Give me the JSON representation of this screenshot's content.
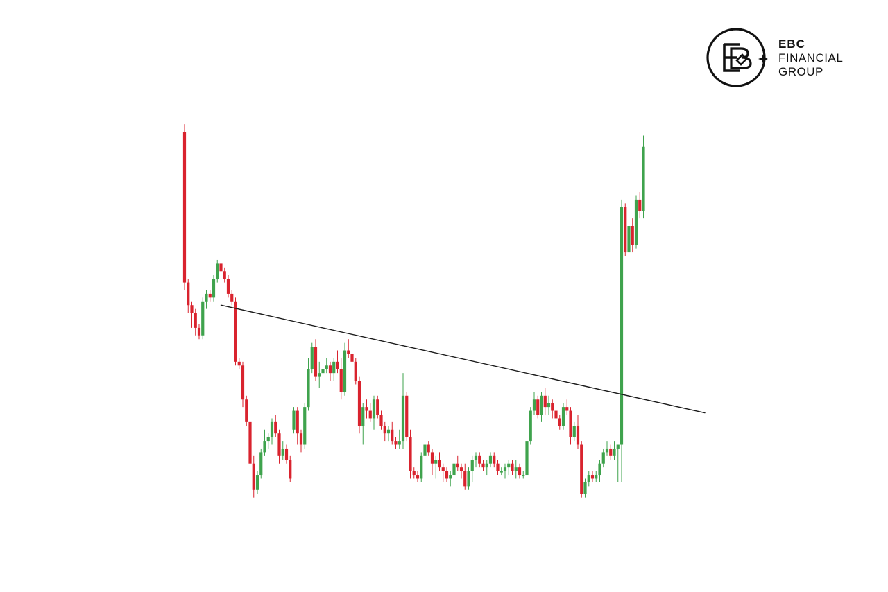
{
  "brand": {
    "line1": "EBC",
    "line2": "FINANCIAL",
    "line3": "GROUP"
  },
  "colors": {
    "up": "#3fa34d",
    "down": "#d9232e",
    "trendline": "#1a1a1a",
    "background": "#ffffff"
  },
  "chart_data": {
    "type": "candlestick",
    "grid": false,
    "axes_visible": false,
    "ylim": [
      0,
      100
    ],
    "candles": [
      [
        100,
        102,
        58,
        60
      ],
      [
        60,
        61,
        52,
        54
      ],
      [
        54,
        55,
        48,
        52
      ],
      [
        52,
        53,
        46,
        48
      ],
      [
        48,
        49,
        45,
        46
      ],
      [
        46,
        56,
        45,
        55
      ],
      [
        55,
        58,
        53,
        57
      ],
      [
        57,
        58,
        55,
        56
      ],
      [
        56,
        62,
        55,
        61
      ],
      [
        61,
        66,
        60,
        65
      ],
      [
        65,
        66,
        62,
        63
      ],
      [
        63,
        64,
        60,
        61
      ],
      [
        61,
        62,
        56,
        57
      ],
      [
        57,
        58,
        54,
        55
      ],
      [
        55,
        56,
        38,
        39
      ],
      [
        39,
        40,
        37,
        38
      ],
      [
        38,
        39,
        27,
        29
      ],
      [
        29,
        30,
        22,
        23
      ],
      [
        23,
        24,
        10,
        12
      ],
      [
        12,
        14,
        3,
        5
      ],
      [
        5,
        10,
        4,
        9
      ],
      [
        9,
        16,
        8,
        15
      ],
      [
        15,
        21,
        14,
        18
      ],
      [
        18,
        20,
        16,
        19
      ],
      [
        19,
        24,
        17,
        23
      ],
      [
        23,
        25,
        19,
        20
      ],
      [
        20,
        21,
        12,
        14
      ],
      [
        14,
        18,
        13,
        16
      ],
      [
        16,
        17,
        12,
        13
      ],
      [
        13,
        14,
        7,
        8
      ],
      [
        21,
        27,
        20,
        26
      ],
      [
        26,
        27,
        17,
        20
      ],
      [
        20,
        21,
        15,
        17
      ],
      [
        17,
        28,
        16,
        27
      ],
      [
        27,
        40,
        26,
        37
      ],
      [
        37,
        44,
        36,
        43
      ],
      [
        43,
        45,
        34,
        35
      ],
      [
        35,
        39,
        32,
        36
      ],
      [
        36,
        38,
        35,
        37
      ],
      [
        37,
        40,
        36,
        38
      ],
      [
        38,
        39,
        34,
        36
      ],
      [
        36,
        40,
        34,
        39
      ],
      [
        39,
        42,
        36,
        37
      ],
      [
        37,
        40,
        29,
        31
      ],
      [
        31,
        44,
        30,
        42
      ],
      [
        42,
        45,
        40,
        41
      ],
      [
        41,
        43,
        38,
        39
      ],
      [
        39,
        40,
        33,
        34
      ],
      [
        34,
        35,
        20,
        22
      ],
      [
        22,
        28,
        17,
        27
      ],
      [
        27,
        29,
        24,
        26
      ],
      [
        26,
        28,
        23,
        24
      ],
      [
        24,
        30,
        21,
        29
      ],
      [
        29,
        30,
        24,
        25
      ],
      [
        25,
        26,
        21,
        22
      ],
      [
        22,
        23,
        18,
        20
      ],
      [
        20,
        22,
        18,
        21
      ],
      [
        21,
        23,
        17,
        18
      ],
      [
        18,
        19,
        16,
        17
      ],
      [
        17,
        21,
        16,
        18
      ],
      [
        18,
        36,
        16,
        30
      ],
      [
        30,
        31,
        18,
        19
      ],
      [
        19,
        21,
        8,
        10
      ],
      [
        10,
        11,
        8,
        9
      ],
      [
        9,
        10,
        7,
        8
      ],
      [
        8,
        15,
        7,
        14
      ],
      [
        14,
        20,
        13,
        17
      ],
      [
        17,
        18,
        14,
        15
      ],
      [
        15,
        16,
        9,
        12
      ],
      [
        12,
        14,
        8,
        13
      ],
      [
        13,
        15,
        10,
        11
      ],
      [
        11,
        12,
        7,
        10
      ],
      [
        10,
        11,
        7,
        8
      ],
      [
        8,
        10,
        6,
        9
      ],
      [
        9,
        13,
        8,
        12
      ],
      [
        12,
        14,
        10,
        11
      ],
      [
        11,
        12,
        8,
        10
      ],
      [
        10,
        12,
        5,
        6
      ],
      [
        6,
        11,
        5,
        10
      ],
      [
        10,
        14,
        7,
        13
      ],
      [
        13,
        15,
        11,
        14
      ],
      [
        14,
        15,
        11,
        12
      ],
      [
        12,
        13,
        10,
        11
      ],
      [
        11,
        13,
        9,
        12
      ],
      [
        12,
        15,
        11,
        14
      ],
      [
        14,
        15,
        11,
        12
      ],
      [
        12,
        13,
        9,
        10
      ],
      [
        10,
        11,
        9,
        10
      ],
      [
        10,
        12,
        8,
        11
      ],
      [
        11,
        13,
        9,
        12
      ],
      [
        12,
        13,
        9,
        10
      ],
      [
        10,
        13,
        8,
        11
      ],
      [
        11,
        12,
        8,
        9
      ],
      [
        9,
        10,
        8,
        9
      ],
      [
        9,
        19,
        8,
        18
      ],
      [
        18,
        27,
        17,
        26
      ],
      [
        26,
        31,
        25,
        29
      ],
      [
        29,
        30,
        24,
        25
      ],
      [
        25,
        31,
        23,
        30
      ],
      [
        30,
        32,
        25,
        27
      ],
      [
        27,
        30,
        25,
        28
      ],
      [
        28,
        29,
        24,
        26
      ],
      [
        26,
        27,
        23,
        24
      ],
      [
        24,
        25,
        21,
        22
      ],
      [
        22,
        28,
        21,
        27
      ],
      [
        27,
        29,
        25,
        26
      ],
      [
        26,
        27,
        17,
        19
      ],
      [
        19,
        23,
        18,
        22
      ],
      [
        22,
        25,
        16,
        17
      ],
      [
        17,
        18,
        3,
        4
      ],
      [
        4,
        8,
        3,
        7
      ],
      [
        7,
        10,
        6,
        9
      ],
      [
        9,
        10,
        7,
        8
      ],
      [
        8,
        10,
        7,
        9
      ],
      [
        9,
        13,
        7,
        12
      ],
      [
        12,
        16,
        11,
        15
      ],
      [
        15,
        18,
        14,
        16
      ],
      [
        16,
        17,
        13,
        14
      ],
      [
        14,
        18,
        13,
        16
      ],
      [
        16,
        17,
        7,
        17
      ],
      [
        17,
        82,
        7,
        80
      ],
      [
        80,
        81,
        67,
        68
      ],
      [
        68,
        76,
        66,
        75
      ],
      [
        75,
        77,
        68,
        70
      ],
      [
        70,
        83,
        69,
        82
      ],
      [
        82,
        84,
        77,
        79
      ],
      [
        79,
        99,
        77,
        96
      ]
    ],
    "trendline": [
      [
        10,
        54
      ],
      [
        131,
        28
      ]
    ]
  }
}
